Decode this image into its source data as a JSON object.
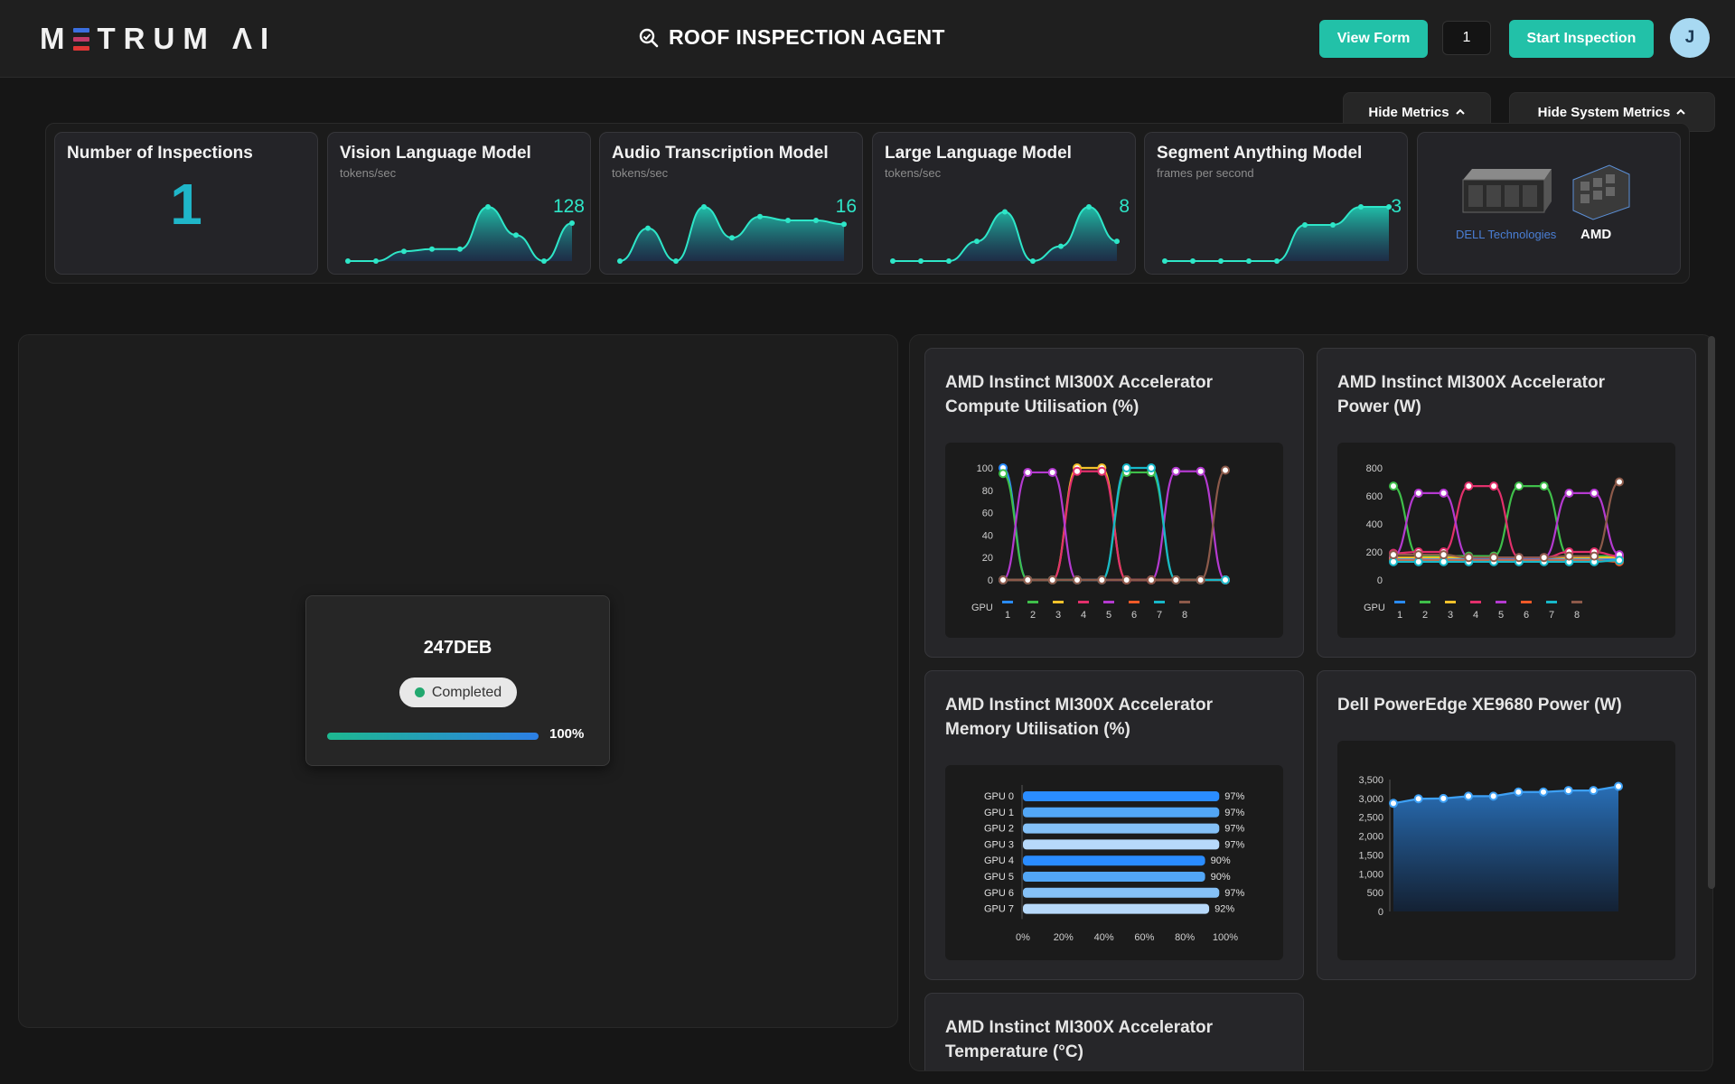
{
  "header": {
    "logo_text": "METRUM AI",
    "title": "ROOF INSPECTION AGENT",
    "view_form_label": "View Form",
    "inspection_count_value": "1",
    "start_inspection_label": "Start Inspection",
    "avatar_initial": "J"
  },
  "toggles": {
    "hide_metrics_label": "Hide Metrics",
    "hide_system_metrics_label": "Hide System Metrics"
  },
  "metrics": {
    "inspections": {
      "title": "Number of Inspections",
      "value": "1"
    },
    "vlm": {
      "title": "Vision Language Model",
      "unit": "tokens/sec",
      "value": "128",
      "series": [
        0,
        0,
        18,
        22,
        22,
        100,
        48,
        0,
        70
      ]
    },
    "audio": {
      "title": "Audio Transcription Model",
      "unit": "tokens/sec",
      "value": "16",
      "series": [
        0,
        17,
        0,
        28,
        12,
        23,
        21,
        21,
        19
      ]
    },
    "llm": {
      "title": "Large Language Model",
      "unit": "tokens/sec",
      "value": "8",
      "series": [
        0,
        0,
        0,
        8,
        20,
        0,
        6,
        22,
        8
      ]
    },
    "sam": {
      "title": "Segment Anything Model",
      "unit": "frames per second",
      "value": "3",
      "series": [
        0,
        0,
        0,
        0,
        0,
        2,
        2,
        3,
        3
      ]
    },
    "logos": {
      "dell": "DELL Technologies",
      "amd": "AMD"
    }
  },
  "job": {
    "id": "247DEB",
    "status": "Completed",
    "progress": 100,
    "progress_label": "100%"
  },
  "charts": [
    {
      "title": "AMD Instinct MI300X Accelerator Compute Utilisation (%)",
      "chart_data": {
        "type": "line",
        "ylim": [
          0,
          100
        ],
        "yticks": [
          "0",
          "20",
          "40",
          "60",
          "80",
          "100"
        ],
        "legend_title": "GPU",
        "series": [
          {
            "name": "1",
            "color": "#2a8cff",
            "values": [
              100,
              0,
              0,
              0,
              0,
              0,
              0,
              0,
              0,
              0,
              0,
              0,
              0,
              0,
              0,
              0,
              0,
              0,
              0
            ]
          },
          {
            "name": "2",
            "color": "#3fbf4a",
            "values": [
              95,
              0,
              0,
              0,
              0,
              0,
              0,
              0,
              0,
              0,
              0,
              0,
              0,
              0,
              0,
              0,
              0,
              0,
              0
            ]
          },
          {
            "name": "3",
            "color": "#f4c22b",
            "values": [
              0,
              0,
              0,
              0,
              0,
              0,
              0,
              0,
              0,
              0,
              0,
              0,
              0,
              0,
              0,
              0,
              0,
              0,
              0
            ]
          },
          {
            "name": "4",
            "color": "#e2306c",
            "values": [
              0,
              0,
              0,
              0,
              0,
              0,
              0,
              0,
              0,
              0,
              0,
              0,
              0,
              0,
              0,
              0,
              0,
              0,
              0
            ]
          },
          {
            "name": "5",
            "color": "#b43ad0",
            "values": [
              0,
              96,
              96,
              0,
              0,
              0,
              0,
              0,
              0,
              0,
              0,
              0,
              0,
              0,
              0,
              0,
              0,
              0,
              0
            ]
          },
          {
            "name": "6",
            "color": "#f05a28",
            "values": [
              0,
              0,
              0,
              0,
              0,
              0,
              0,
              0,
              0,
              0,
              0,
              0,
              0,
              0,
              0,
              0,
              0,
              0,
              0
            ]
          },
          {
            "name": "7",
            "color": "#17b8c9",
            "values": [
              0,
              0,
              0,
              0,
              0,
              0,
              0,
              0,
              0,
              0,
              0,
              0,
              0,
              0,
              0,
              0,
              0,
              0,
              0
            ]
          },
          {
            "name": "8",
            "color": "#8d5a4a",
            "values": [
              0,
              0,
              0,
              0,
              0,
              0,
              0,
              0,
              0,
              0,
              0,
              0,
              0,
              0,
              0,
              0,
              0,
              0,
              0
            ]
          }
        ]
      }
    },
    {
      "title": "AMD Instinct MI300X Accelerator Power (W)",
      "chart_data": {
        "type": "line",
        "ylim": [
          0,
          800
        ],
        "yticks": [
          "0",
          "200",
          "400",
          "600",
          "800"
        ],
        "legend_title": "GPU",
        "series": []
      }
    },
    {
      "title": "AMD Instinct MI300X Accelerator Memory Utilisation (%)",
      "chart_data": {
        "type": "bar",
        "orientation": "horizontal",
        "categories": [
          "GPU 0",
          "GPU 1",
          "GPU 2",
          "GPU 3",
          "GPU 4",
          "GPU 5",
          "GPU 6",
          "GPU 7"
        ],
        "values": [
          97,
          97,
          97,
          97,
          90,
          90,
          97,
          92
        ],
        "labels": [
          "97%",
          "97%",
          "97%",
          "97%",
          "90%",
          "90%",
          "97%",
          "92%"
        ],
        "colors": [
          "#2a8cff",
          "#52a6f5",
          "#85c1f7",
          "#b7d9fa",
          "#2a8cff",
          "#52a6f5",
          "#85c1f7",
          "#b7d9fa"
        ],
        "xticks": [
          "0%",
          "20%",
          "40%",
          "60%",
          "80%",
          "100%"
        ],
        "xlim": [
          0,
          100
        ]
      }
    },
    {
      "title": "Dell PowerEdge XE9680 Power (W)",
      "chart_data": {
        "type": "area",
        "ylim": [
          0,
          3500
        ],
        "yticks": [
          "0",
          "500",
          "1,000",
          "1,500",
          "2,000",
          "2,500",
          "3,000",
          "3,500"
        ],
        "values": [
          2870,
          2990,
          3000,
          3060,
          3060,
          3170,
          3170,
          3210,
          3210,
          3320
        ],
        "color": "#3da0f5"
      }
    },
    {
      "title": "AMD Instinct MI300X Accelerator Temperature (°C)"
    }
  ]
}
